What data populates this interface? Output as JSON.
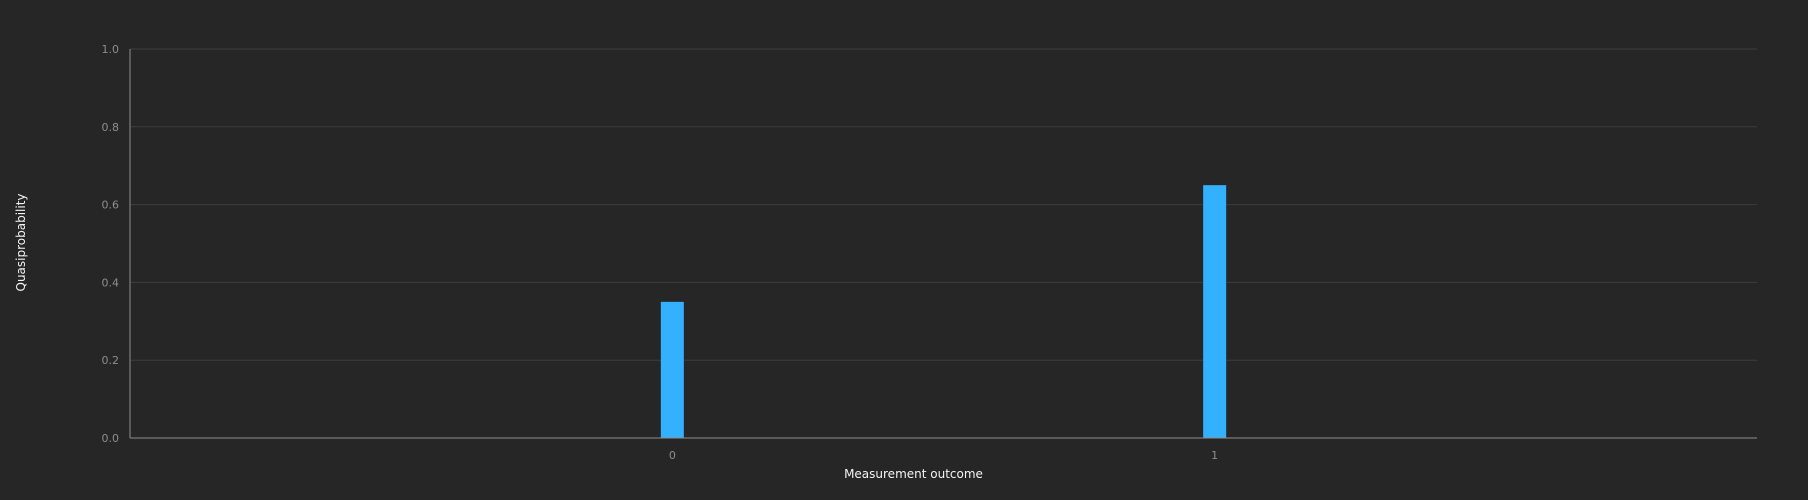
{
  "chart_data": {
    "type": "bar",
    "title": "",
    "xlabel": "Measurement outcome",
    "ylabel": "Quasiprobability",
    "categories": [
      "0",
      "1"
    ],
    "values": [
      0.35,
      0.65
    ],
    "ylim": [
      0,
      1.0
    ],
    "yticks": [
      "0.0",
      "0.2",
      "0.4",
      "0.6",
      "0.8",
      "1.0"
    ],
    "grid": true,
    "legend": "none",
    "colors": {
      "bar": "#33b1ff",
      "background": "#262626"
    }
  }
}
